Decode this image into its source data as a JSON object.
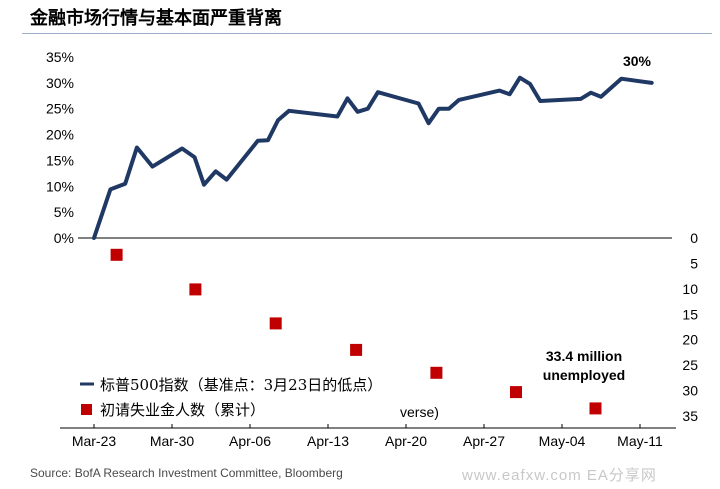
{
  "title": "金融市场行情与基本面严重背离",
  "source": "Source: BofA Research Investment Committee, Bloomberg",
  "watermark": "www.eafxw.com   EA分享网",
  "chart_data": {
    "type": "line+scatter",
    "categories": [
      "Mar-23",
      "Mar-30",
      "Apr-06",
      "Apr-13",
      "Apr-20",
      "Apr-27",
      "May-04",
      "May-11"
    ],
    "left_axis": {
      "ticks": [
        "0%",
        "5%",
        "10%",
        "15%",
        "20%",
        "25%",
        "30%",
        "35%"
      ],
      "range": [
        0,
        35
      ]
    },
    "right_axis": {
      "ticks": [
        "0",
        "5",
        "10",
        "15",
        "20",
        "25",
        "30",
        "35"
      ],
      "range": [
        0,
        35
      ],
      "inverted": true
    },
    "series": [
      {
        "name": "标普500指数（基准点：3月23日的低点）",
        "kind": "line",
        "axis": "left",
        "color": "#1f3864",
        "points": [
          [
            0.0,
            0
          ],
          [
            0.21,
            9.4
          ],
          [
            0.4,
            10.5
          ],
          [
            0.55,
            17.5
          ],
          [
            0.75,
            13.8
          ],
          [
            1.13,
            17.3
          ],
          [
            1.29,
            15.6
          ],
          [
            1.41,
            10.3
          ],
          [
            1.56,
            12.9
          ],
          [
            1.7,
            11.3
          ],
          [
            2.1,
            18.8
          ],
          [
            2.23,
            18.9
          ],
          [
            2.36,
            22.8
          ],
          [
            2.5,
            24.6
          ],
          [
            3.12,
            23.5
          ],
          [
            3.25,
            27.0
          ],
          [
            3.38,
            24.4
          ],
          [
            3.51,
            25.0
          ],
          [
            3.64,
            28.2
          ],
          [
            4.16,
            26.0
          ],
          [
            4.29,
            22.2
          ],
          [
            4.42,
            25.0
          ],
          [
            4.55,
            25.0
          ],
          [
            4.68,
            26.7
          ],
          [
            5.2,
            28.5
          ],
          [
            5.33,
            27.8
          ],
          [
            5.46,
            31.0
          ],
          [
            5.59,
            29.8
          ],
          [
            5.72,
            26.5
          ],
          [
            6.24,
            26.9
          ],
          [
            6.37,
            28.1
          ],
          [
            6.5,
            27.3
          ],
          [
            6.76,
            30.8
          ],
          [
            7.15,
            30.0
          ]
        ]
      },
      {
        "name": "初请失业金人数（累计）",
        "kind": "scatter",
        "axis": "right",
        "color": "#c00000",
        "points": [
          [
            0.29,
            3.3
          ],
          [
            1.3,
            10.1
          ],
          [
            2.33,
            16.8
          ],
          [
            3.36,
            22.0
          ],
          [
            4.39,
            26.5
          ],
          [
            5.41,
            30.3
          ],
          [
            6.43,
            33.5
          ]
        ]
      }
    ],
    "annotations": [
      {
        "text": "30%"
      },
      {
        "lines": [
          "33.4 million",
          "unemployed"
        ]
      },
      {
        "text": "verse)"
      }
    ]
  }
}
